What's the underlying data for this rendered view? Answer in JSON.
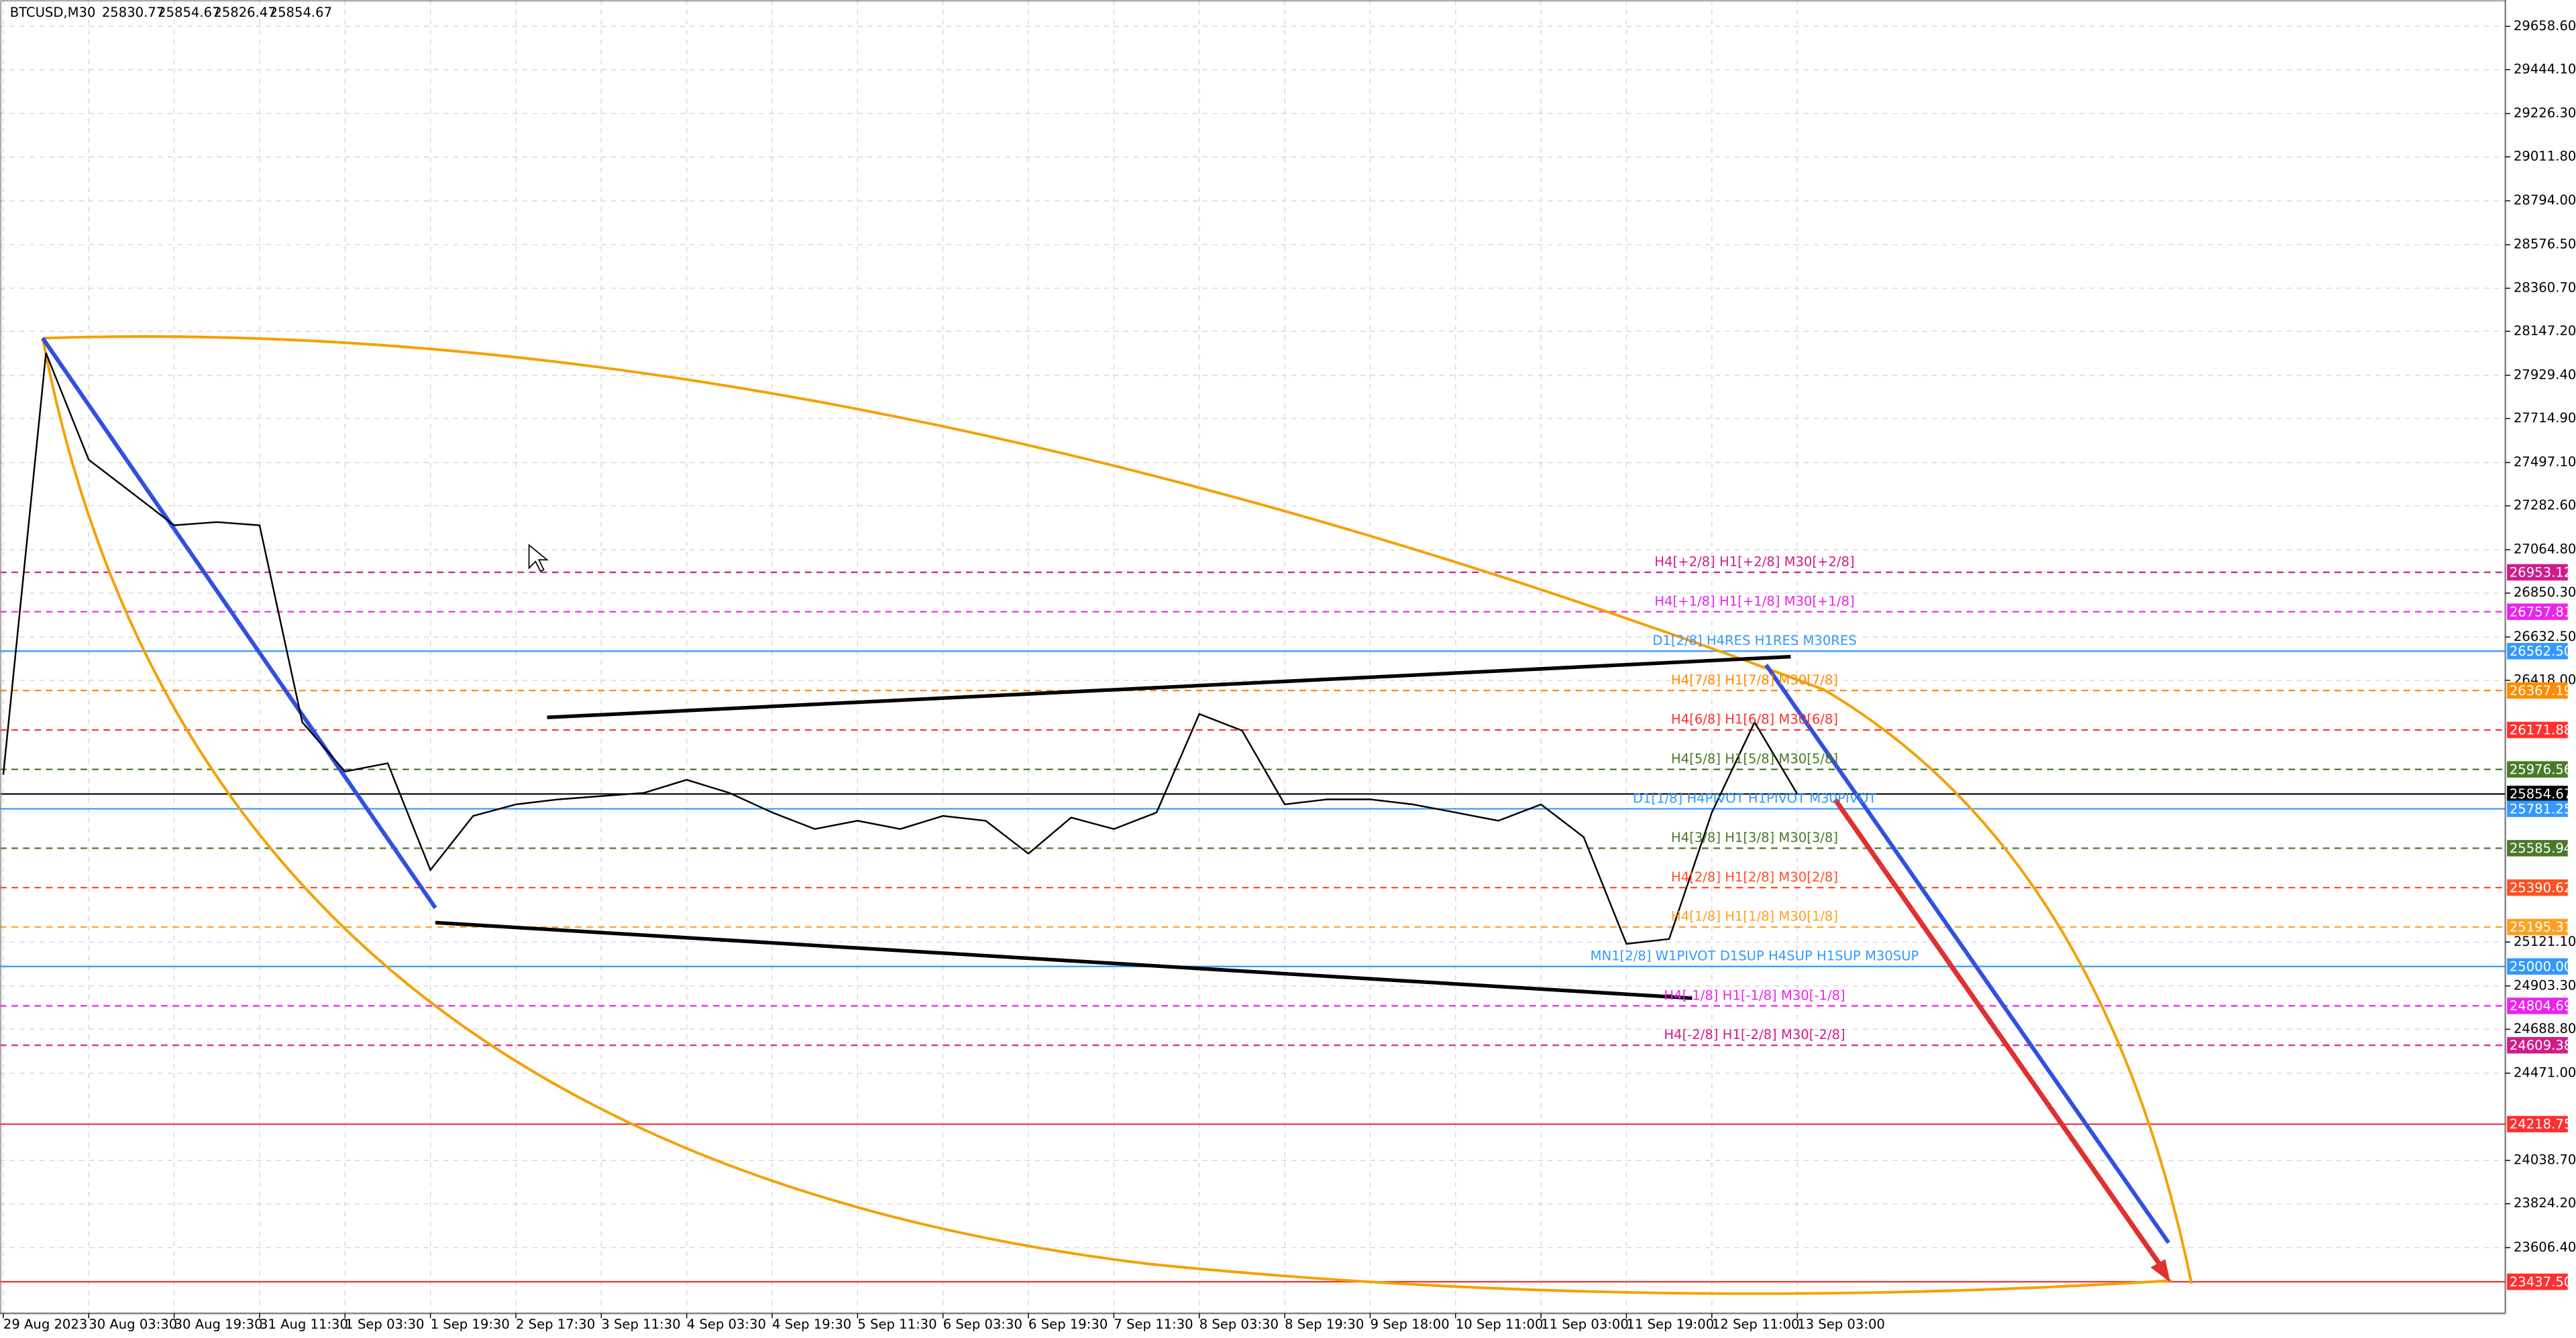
{
  "header": {
    "symbol": "BTCUSD,M30",
    "open": 25830.77,
    "high": 25854.67,
    "low": 25826.47,
    "close": 25854.67
  },
  "chart_data": {
    "type": "line",
    "grid": true,
    "ylim": [
      23281,
      29789
    ],
    "yticks": [
      {
        "value": 29658.6,
        "label": "29658.60"
      },
      {
        "value": 29444.1,
        "label": "29444.10"
      },
      {
        "value": 29226.3,
        "label": "29226.30"
      },
      {
        "value": 29011.8,
        "label": "29011.80"
      },
      {
        "value": 28794,
        "label": "28794.00"
      },
      {
        "value": 28576.5,
        "label": "28576.50"
      },
      {
        "value": 28360.7,
        "label": "28360.70"
      },
      {
        "value": 28147.2,
        "label": "28147.20"
      },
      {
        "value": 27929.4,
        "label": "27929.40"
      },
      {
        "value": 27714.9,
        "label": "27714.90"
      },
      {
        "value": 27497.1,
        "label": "27497.10"
      },
      {
        "value": 27282.6,
        "label": "27282.60"
      },
      {
        "value": 27064.8,
        "label": "27064.80"
      },
      {
        "value": 26850.3,
        "label": "26850.30"
      },
      {
        "value": 26632.5,
        "label": "26632.50"
      },
      {
        "value": 26418,
        "label": "26418.00"
      },
      {
        "value": 25121.1,
        "label": "25121.10"
      },
      {
        "value": 24903.3,
        "label": "24903.30"
      },
      {
        "value": 24688.8,
        "label": "24688.80"
      },
      {
        "value": 24471,
        "label": "24471.00"
      },
      {
        "value": 24038.7,
        "label": "24038.70"
      },
      {
        "value": 23824.2,
        "label": "23824.20"
      },
      {
        "value": 23606.4,
        "label": "23606.40"
      }
    ],
    "categories": [
      "29 Aug 2023",
      null,
      "30 Aug 03:30",
      null,
      "30 Aug 19:30",
      null,
      "31 Aug 11:30",
      null,
      "1 Sep 03:30",
      null,
      "1 Sep 19:30",
      null,
      "2 Sep 17:30",
      null,
      "3 Sep 11:30",
      null,
      "4 Sep 03:30",
      null,
      "4 Sep 19:30",
      null,
      "5 Sep 11:30",
      null,
      "6 Sep 03:30",
      null,
      "6 Sep 19:30",
      null,
      "7 Sep 11:30",
      null,
      "8 Sep 03:30",
      null,
      "8 Sep 19:30",
      null,
      "9 Sep 18:00",
      null,
      "10 Sep 11:00",
      null,
      "11 Sep 03:00",
      null,
      "11 Sep 19:00",
      null,
      "12 Sep 11:00",
      null,
      "13 Sep 03:00"
    ],
    "series": [
      {
        "name": "BTCUSD",
        "color": "#000000",
        "values": [
          25950,
          28040,
          27511,
          27349,
          27186,
          27202,
          27186,
          26210,
          25966,
          26007,
          25478,
          25746,
          25803,
          25828,
          25844,
          25860,
          25925,
          25860,
          25763,
          25681,
          25722,
          25681,
          25746,
          25722,
          25559,
          25738,
          25681,
          25763,
          26251,
          26169,
          25803,
          25828,
          25828,
          25803,
          25763,
          25722,
          25803,
          25641,
          25112,
          25136,
          25763,
          26210,
          25854.67
        ]
      }
    ],
    "levels": [
      {
        "value": 26953.12,
        "color": "#d01c8b",
        "dash": true,
        "text": "H4[+2/8] H1[+2/8] M30[+2/8]"
      },
      {
        "value": 26757.81,
        "color": "#ee22ee",
        "dash": true,
        "text": "H4[+1/8] H1[+1/8] M30[+1/8]"
      },
      {
        "value": 26562.5,
        "label": "26562.50",
        "color": "#3399ff",
        "dash": false,
        "text": "D1[2/8] H4RES H1RES M30RES"
      },
      {
        "value": 26367.19,
        "color": "#ff8c00",
        "dash": true,
        "text": "H4[7/8] H1[7/8] M30[7/8]"
      },
      {
        "value": 26171.88,
        "color": "#ff3030",
        "dash": true,
        "text": "H4[6/8] H1[6/8] M30[6/8]"
      },
      {
        "value": 25976.56,
        "color": "#4a7a2a",
        "dash": true,
        "text": "H4[5/8] H1[5/8] M30[5/8]"
      },
      {
        "value": 25854.67,
        "color": "#000000",
        "dash": false
      },
      {
        "value": 25781.25,
        "color": "#3399ff",
        "dash": false,
        "text": "D1[1/8] H4PIVOT H1PIVOT M30PIVOT"
      },
      {
        "value": 25585.94,
        "color": "#4a7a2a",
        "dash": true,
        "text": "H4[3/8] H1[3/8] M30[3/8]"
      },
      {
        "value": 25390.62,
        "color": "#ff5020",
        "dash": true,
        "text": "H4[2/8] H1[2/8] M30[2/8]"
      },
      {
        "value": 25195.31,
        "color": "#ffa020",
        "dash": true,
        "text": "H4[1/8] H1[1/8] M30[1/8]"
      },
      {
        "value": 25000,
        "label": "25000.00",
        "color": "#3399ff",
        "dash": false,
        "text": "MN1[2/8] W1PIVOT D1SUP H4SUP H1SUP M30SUP"
      },
      {
        "value": 24804.69,
        "color": "#ee22ee",
        "dash": true,
        "text": "H4[-1/8] H1[-1/8] M30[-1/8]"
      },
      {
        "value": 24609.38,
        "color": "#d01c8b",
        "dash": true,
        "text": "H4[-2/8] H1[-2/8] M30[-2/8]"
      },
      {
        "value": 24218.75,
        "color": "#ff3030",
        "dash": false
      },
      {
        "value": 23437.5,
        "label": "23437.50",
        "color": "#ff3030",
        "dash": false
      }
    ]
  }
}
